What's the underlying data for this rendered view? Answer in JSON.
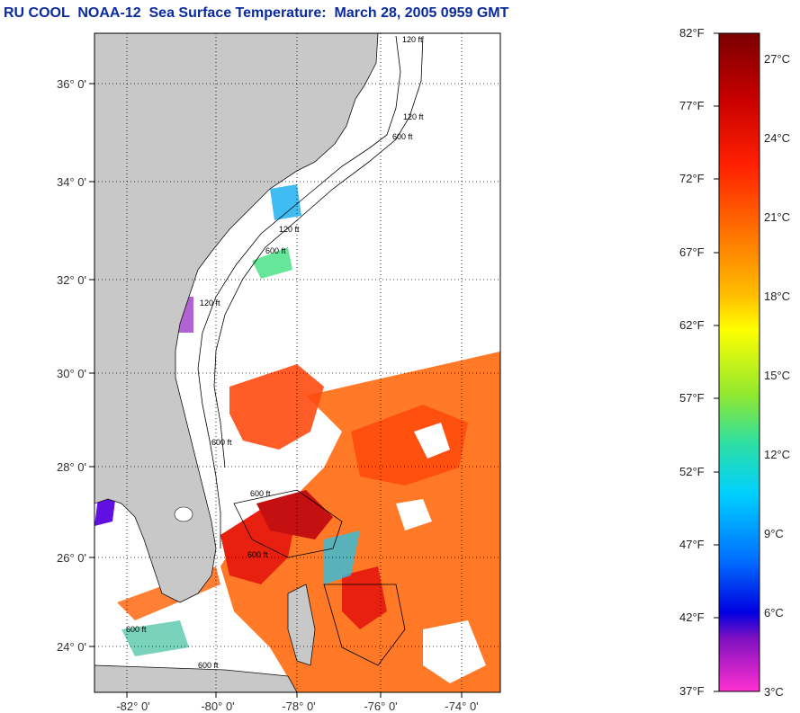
{
  "title": "RU COOL  NOAA-12  Sea Surface Temperature:  March 28, 2005 0959 GMT",
  "map": {
    "lat_labels": [
      "36° 0'",
      "34° 0'",
      "32° 0'",
      "30° 0'",
      "28° 0'",
      "26° 0'",
      "24° 0'"
    ],
    "lon_labels": [
      "-82° 0'",
      "-80° 0'",
      "-78° 0'",
      "-76° 0'",
      "-74° 0'"
    ],
    "contour_labels": [
      "120 ft",
      "120 ft",
      "600 ft",
      "120 ft",
      "600 ft",
      "120 ft",
      "600 ft",
      "600 ft",
      "600 ft",
      "600 ft",
      "600 ft"
    ],
    "colors": {
      "land": "#c8c8c8",
      "no_data": "#ffffff",
      "grid": "#000000"
    }
  },
  "colorbar": {
    "fahrenheit": [
      "82°F",
      "77°F",
      "72°F",
      "67°F",
      "62°F",
      "57°F",
      "52°F",
      "47°F",
      "42°F",
      "37°F"
    ],
    "celsius": [
      "27°C",
      "24°C",
      "21°C",
      "18°C",
      "15°C",
      "12°C",
      "9°C",
      "6°C",
      "3°C"
    ]
  }
}
